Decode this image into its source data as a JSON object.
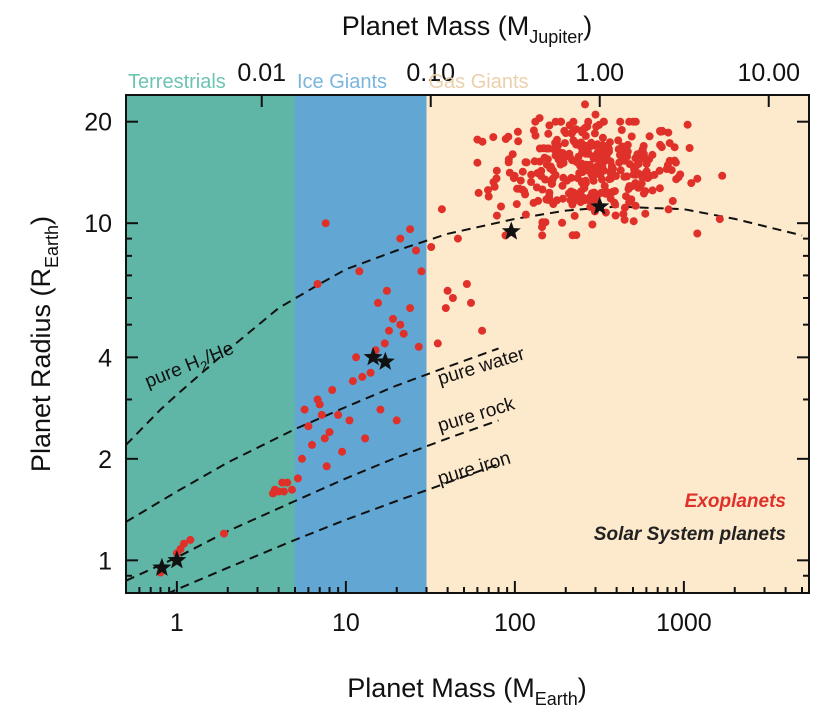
{
  "chart_data": {
    "type": "scatter",
    "title": "",
    "xlabel": {
      "main": "Planet Mass (M",
      "sub": "Earth",
      "close": ")"
    },
    "top_xlabel": {
      "main": "Planet Mass (M",
      "sub": "Jupiter",
      "close": ")"
    },
    "ylabel": {
      "main": "Planet Radius (R",
      "sub": "Earth",
      "close": ")"
    },
    "x_scale": "log",
    "y_scale": "log",
    "xlim": [
      0.5,
      5500
    ],
    "ylim": [
      0.8,
      24
    ],
    "x_ticks": [
      {
        "value": 1,
        "label": "1"
      },
      {
        "value": 10,
        "label": "10"
      },
      {
        "value": 100,
        "label": "100"
      },
      {
        "value": 1000,
        "label": "1000"
      }
    ],
    "y_ticks": [
      {
        "value": 1,
        "label": "1"
      },
      {
        "value": 2,
        "label": "2"
      },
      {
        "value": 4,
        "label": "4"
      },
      {
        "value": 10,
        "label": "10"
      },
      {
        "value": 20,
        "label": "20"
      }
    ],
    "top_ticks": [
      {
        "value": 0.01,
        "label": "0.01"
      },
      {
        "value": 0.1,
        "label": "0.10"
      },
      {
        "value": 1,
        "label": "1.00"
      },
      {
        "value": 10,
        "label": "10.00"
      }
    ],
    "earth_per_jupiter": 317.8,
    "regions": [
      {
        "name": "Terrestrials",
        "xmin": 0.5,
        "xmax": 5,
        "color": "#5fb6a6",
        "label_color": "#6cc4b3"
      },
      {
        "name": "Ice Giants",
        "xmin": 5,
        "xmax": 30,
        "color": "#62a6d3",
        "label_color": "#79b6dd"
      },
      {
        "name": "Gas Giants",
        "xmin": 30,
        "xmax": 5500,
        "color": "#fde9cc",
        "label_color": "#ebd0ac"
      }
    ],
    "curves": [
      {
        "name": "pure H₂/He",
        "label_main": "pure H",
        "label_sub": "2",
        "label_tail": "/He",
        "label_angle": -22,
        "points": [
          [
            0.5,
            2.2
          ],
          [
            0.8,
            2.8
          ],
          [
            1,
            3.1
          ],
          [
            2,
            4.2
          ],
          [
            4,
            5.6
          ],
          [
            7,
            6.6
          ],
          [
            10,
            7.3
          ],
          [
            20,
            8.3
          ],
          [
            40,
            9.3
          ],
          [
            100,
            10.3
          ],
          [
            200,
            10.9
          ],
          [
            400,
            11.2
          ],
          [
            1000,
            11.0
          ],
          [
            2000,
            10.3
          ],
          [
            5000,
            9.2
          ]
        ]
      },
      {
        "name": "pure water",
        "label_main": "pure water",
        "label_angle": -17,
        "points": [
          [
            0.5,
            1.3
          ],
          [
            1,
            1.6
          ],
          [
            2,
            1.95
          ],
          [
            5,
            2.45
          ],
          [
            10,
            2.85
          ],
          [
            20,
            3.3
          ],
          [
            40,
            3.75
          ],
          [
            80,
            4.25
          ]
        ]
      },
      {
        "name": "pure rock",
        "label_main": "pure rock",
        "label_angle": -17,
        "points": [
          [
            0.5,
            0.87
          ],
          [
            1,
            1.02
          ],
          [
            2,
            1.22
          ],
          [
            5,
            1.5
          ],
          [
            10,
            1.75
          ],
          [
            20,
            2.02
          ],
          [
            40,
            2.3
          ],
          [
            80,
            2.6
          ]
        ]
      },
      {
        "name": "pure iron",
        "label_main": "pure iron",
        "label_angle": -17,
        "points": [
          [
            0.5,
            0.7
          ],
          [
            1,
            0.82
          ],
          [
            2,
            0.95
          ],
          [
            5,
            1.15
          ],
          [
            10,
            1.32
          ],
          [
            20,
            1.5
          ],
          [
            40,
            1.7
          ],
          [
            80,
            1.93
          ]
        ]
      }
    ],
    "series": [
      {
        "name": "Exoplanets",
        "color": "#e0302a",
        "marker": "circle",
        "points": [
          [
            0.8,
            0.92
          ],
          [
            1.0,
            1.05
          ],
          [
            1.05,
            1.08
          ],
          [
            1.1,
            1.12
          ],
          [
            1.2,
            1.15
          ],
          [
            1.9,
            1.2
          ],
          [
            3.7,
            1.58
          ],
          [
            3.8,
            1.62
          ],
          [
            4.0,
            1.6
          ],
          [
            4.2,
            1.7
          ],
          [
            4.3,
            1.6
          ],
          [
            4.5,
            1.7
          ],
          [
            4.8,
            1.62
          ],
          [
            5.2,
            1.75
          ],
          [
            5.5,
            2.0
          ],
          [
            5.7,
            2.8
          ],
          [
            6.0,
            2.5
          ],
          [
            6.3,
            2.2
          ],
          [
            6.8,
            3.0
          ],
          [
            7.0,
            2.9
          ],
          [
            7.2,
            2.7
          ],
          [
            7.5,
            2.3
          ],
          [
            7.7,
            1.9
          ],
          [
            8.0,
            2.4
          ],
          [
            8.3,
            3.2
          ],
          [
            9.0,
            2.7
          ],
          [
            9.5,
            2.1
          ],
          [
            10.5,
            2.6
          ],
          [
            11.0,
            3.4
          ],
          [
            11.5,
            4.0
          ],
          [
            12.5,
            3.5
          ],
          [
            13.0,
            2.3
          ],
          [
            14.0,
            3.6
          ],
          [
            15.0,
            4.2
          ],
          [
            15.5,
            5.8
          ],
          [
            16.0,
            2.8
          ],
          [
            17.0,
            4.4
          ],
          [
            17.5,
            6.3
          ],
          [
            18.0,
            4.8
          ],
          [
            19.0,
            5.2
          ],
          [
            20.0,
            2.6
          ],
          [
            21.0,
            5.0
          ],
          [
            22.0,
            4.7
          ],
          [
            24.0,
            5.6
          ],
          [
            27.0,
            4.3
          ],
          [
            28.0,
            7.2
          ],
          [
            32.0,
            8.5
          ],
          [
            35.0,
            4.4
          ],
          [
            37.0,
            11.0
          ],
          [
            39.0,
            5.6
          ],
          [
            40.0,
            6.3
          ],
          [
            43.0,
            6.0
          ],
          [
            46.0,
            9.0
          ],
          [
            52.0,
            6.6
          ],
          [
            55.0,
            5.8
          ],
          [
            61.0,
            12.3
          ],
          [
            64.0,
            4.8
          ],
          [
            6.8,
            6.6
          ],
          [
            7.6,
            10.0
          ],
          [
            12.0,
            7.2
          ],
          [
            21.0,
            9.0
          ],
          [
            24.0,
            9.6
          ],
          [
            26.0,
            8.3
          ],
          [
            70.0,
            12.0
          ],
          [
            88.0,
            9.2
          ],
          [
            260,
            22.5
          ],
          [
            300,
            21.0
          ],
          [
            140,
            20.5
          ],
          [
            160,
            19.5
          ],
          [
            200,
            18.5
          ],
          [
            230,
            19.0
          ],
          [
            180,
            17.0
          ]
        ]
      },
      {
        "name": "Solar System planets",
        "color": "#111111",
        "marker": "star",
        "points": [
          [
            0.815,
            0.95
          ],
          [
            1.0,
            1.0
          ],
          [
            14.5,
            4.0
          ],
          [
            17.1,
            3.88
          ],
          [
            95.2,
            9.45
          ],
          [
            317.8,
            11.2
          ]
        ]
      }
    ],
    "gas_giant_cloud": {
      "seed": 12345,
      "count": 330,
      "log_x_mean": 2.45,
      "log_x_sd": 0.28,
      "x_min": 60,
      "x_max": 3800,
      "y_center": 14.5,
      "y_sd": 0.075,
      "y_min": 9.2,
      "y_max": 20
    },
    "legend": [
      {
        "label": "Exoplanets",
        "color": "#e0302a"
      },
      {
        "label": "Solar System planets",
        "color": "#222222"
      }
    ]
  }
}
